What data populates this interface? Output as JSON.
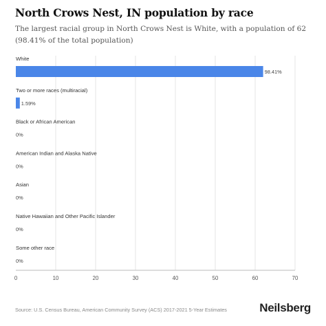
{
  "header": {
    "title": "North Crows Nest, IN population by race",
    "subtitle": "The largest racial group in North Crows Nest is White, with a population of 62 (98.41% of the total population)"
  },
  "footer": {
    "source": "Source: U.S. Census Bureau, American Community Survey (ACS) 2017-2021 5-Year Estimates",
    "brand": "Neilsberg"
  },
  "colors": {
    "bar": "#4a86e8",
    "grid": "#e6e6e6",
    "axis": "#bbbbbb"
  },
  "chart_data": {
    "type": "bar",
    "orientation": "horizontal",
    "categories": [
      "White",
      "Two or more races (multiracial)",
      "Black or African American",
      "American Indian and Alaska Native",
      "Asian",
      "Native Hawaiian and Other Pacific Islander",
      "Some other race"
    ],
    "values": [
      62,
      1,
      0,
      0,
      0,
      0,
      0
    ],
    "value_labels": [
      "98.41%",
      "1.59%",
      "0%",
      "0%",
      "0%",
      "0%",
      "0%"
    ],
    "xlim": [
      0,
      70
    ],
    "xticks": [
      0,
      10,
      20,
      30,
      40,
      50,
      60,
      70
    ],
    "grid": true
  }
}
